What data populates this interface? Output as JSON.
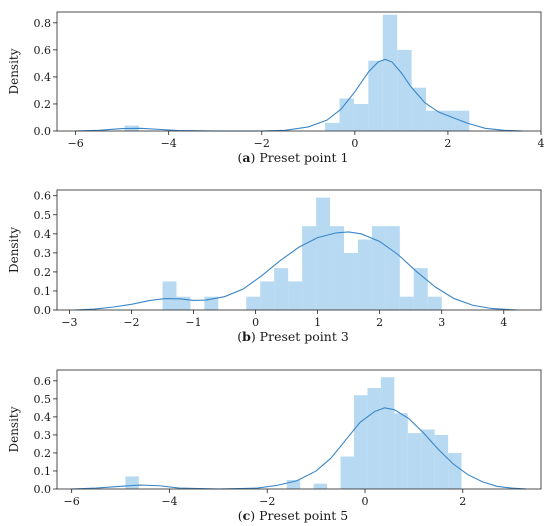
{
  "chart_data": [
    {
      "type": "bar",
      "panel_letter": "a",
      "caption_text": "Preset point 1",
      "ylabel": "Density",
      "xlim": [
        -6.4,
        4.0
      ],
      "ylim": [
        0,
        0.88
      ],
      "xticks": [
        -6,
        -4,
        -2,
        0,
        2,
        4
      ],
      "yticks": [
        0.0,
        0.2,
        0.4,
        0.6,
        0.8
      ],
      "bin_width": 0.31,
      "bars": [
        {
          "x": -4.95,
          "value": 0.04
        },
        {
          "x": -0.64,
          "value": 0.06
        },
        {
          "x": -0.33,
          "value": 0.24
        },
        {
          "x": -0.02,
          "value": 0.2
        },
        {
          "x": 0.29,
          "value": 0.52
        },
        {
          "x": 0.6,
          "value": 0.86
        },
        {
          "x": 0.91,
          "value": 0.6
        },
        {
          "x": 1.22,
          "value": 0.32
        },
        {
          "x": 1.53,
          "value": 0.15
        },
        {
          "x": 1.84,
          "value": 0.15
        },
        {
          "x": 2.15,
          "value": 0.15
        }
      ],
      "kde": {
        "x": [
          -6.0,
          -5.5,
          -5.0,
          -4.6,
          -4.2,
          -3.8,
          -3.0,
          -2.0,
          -1.5,
          -1.0,
          -0.6,
          -0.3,
          0.0,
          0.3,
          0.5,
          0.65,
          0.8,
          1.0,
          1.2,
          1.5,
          1.8,
          2.1,
          2.4,
          2.8,
          3.2,
          3.6
        ],
        "y": [
          0.0,
          0.005,
          0.018,
          0.02,
          0.012,
          0.003,
          0.0,
          0.0,
          0.005,
          0.03,
          0.08,
          0.16,
          0.29,
          0.44,
          0.51,
          0.53,
          0.51,
          0.43,
          0.33,
          0.21,
          0.14,
          0.1,
          0.06,
          0.02,
          0.005,
          0.0
        ]
      }
    },
    {
      "type": "bar",
      "panel_letter": "b",
      "caption_text": "Preset point 3",
      "ylabel": "Density",
      "xlim": [
        -3.2,
        4.6
      ],
      "ylim": [
        0,
        0.63
      ],
      "xticks": [
        -3,
        -2,
        -1,
        0,
        1,
        2,
        3,
        4
      ],
      "yticks": [
        0.0,
        0.1,
        0.2,
        0.3,
        0.4,
        0.5,
        0.6
      ],
      "bin_width": 0.225,
      "bars": [
        {
          "x": -1.5,
          "value": 0.15
        },
        {
          "x": -1.275,
          "value": 0.07
        },
        {
          "x": -0.825,
          "value": 0.07
        },
        {
          "x": -0.15,
          "value": 0.07
        },
        {
          "x": 0.075,
          "value": 0.15
        },
        {
          "x": 0.3,
          "value": 0.22
        },
        {
          "x": 0.525,
          "value": 0.15
        },
        {
          "x": 0.75,
          "value": 0.44
        },
        {
          "x": 0.975,
          "value": 0.59
        },
        {
          "x": 1.2,
          "value": 0.44
        },
        {
          "x": 1.425,
          "value": 0.3
        },
        {
          "x": 1.65,
          "value": 0.37
        },
        {
          "x": 1.875,
          "value": 0.44
        },
        {
          "x": 2.1,
          "value": 0.44
        },
        {
          "x": 2.325,
          "value": 0.07
        },
        {
          "x": 2.55,
          "value": 0.22
        },
        {
          "x": 2.775,
          "value": 0.07
        }
      ],
      "kde": {
        "x": [
          -2.9,
          -2.6,
          -2.3,
          -2.0,
          -1.7,
          -1.45,
          -1.2,
          -1.0,
          -0.8,
          -0.5,
          -0.2,
          0.1,
          0.4,
          0.7,
          1.0,
          1.3,
          1.5,
          1.7,
          2.0,
          2.3,
          2.6,
          2.9,
          3.2,
          3.5,
          3.8,
          4.2
        ],
        "y": [
          0.0,
          0.005,
          0.015,
          0.03,
          0.05,
          0.06,
          0.058,
          0.05,
          0.052,
          0.07,
          0.11,
          0.18,
          0.26,
          0.33,
          0.38,
          0.405,
          0.41,
          0.4,
          0.36,
          0.29,
          0.2,
          0.12,
          0.06,
          0.025,
          0.008,
          0.0
        ]
      }
    },
    {
      "type": "bar",
      "panel_letter": "c",
      "caption_text": "Preset point 5",
      "ylabel": "Density",
      "xlim": [
        -6.3,
        3.6
      ],
      "ylim": [
        0,
        0.66
      ],
      "xticks": [
        -6,
        -4,
        -2,
        0,
        2
      ],
      "yticks": [
        0.0,
        0.1,
        0.2,
        0.3,
        0.4,
        0.5,
        0.6
      ],
      "bin_width": 0.275,
      "bars": [
        {
          "x": -4.9,
          "value": 0.07
        },
        {
          "x": -1.6,
          "value": 0.05
        },
        {
          "x": -1.05,
          "value": 0.03
        },
        {
          "x": -0.5,
          "value": 0.18
        },
        {
          "x": -0.225,
          "value": 0.52
        },
        {
          "x": 0.05,
          "value": 0.56
        },
        {
          "x": 0.325,
          "value": 0.62
        },
        {
          "x": 0.6,
          "value": 0.42
        },
        {
          "x": 0.875,
          "value": 0.31
        },
        {
          "x": 1.15,
          "value": 0.33
        },
        {
          "x": 1.425,
          "value": 0.3
        },
        {
          "x": 1.7,
          "value": 0.2
        }
      ],
      "kde": {
        "x": [
          -6.0,
          -5.5,
          -5.0,
          -4.6,
          -4.2,
          -3.8,
          -3.0,
          -2.2,
          -1.8,
          -1.4,
          -1.0,
          -0.7,
          -0.4,
          -0.1,
          0.2,
          0.4,
          0.6,
          0.9,
          1.2,
          1.5,
          1.8,
          2.1,
          2.4,
          2.7,
          3.0,
          3.3
        ],
        "y": [
          0.0,
          0.005,
          0.015,
          0.022,
          0.018,
          0.005,
          0.0,
          0.005,
          0.02,
          0.045,
          0.1,
          0.17,
          0.27,
          0.37,
          0.43,
          0.45,
          0.44,
          0.39,
          0.31,
          0.22,
          0.14,
          0.08,
          0.04,
          0.015,
          0.005,
          0.0
        ]
      }
    }
  ]
}
